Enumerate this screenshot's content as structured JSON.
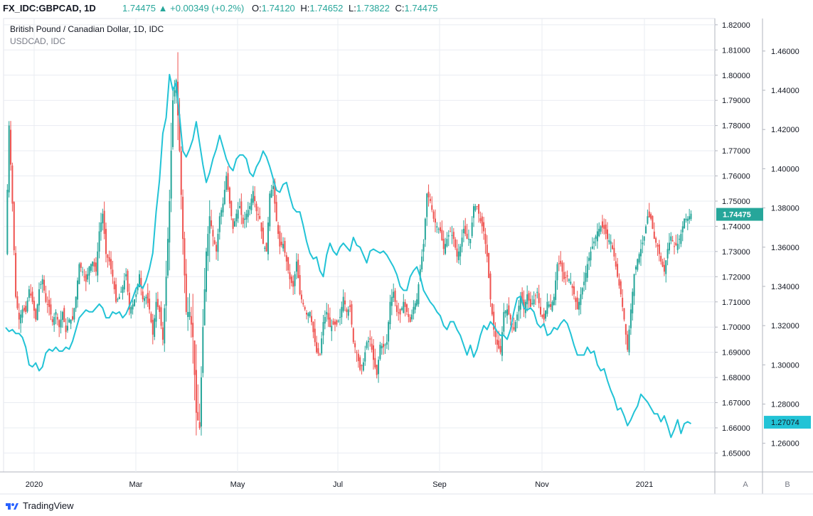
{
  "header": {
    "symbol": "FX_IDC:GBPCAD, 1D",
    "last": "1.74475",
    "change": "+0.00349 (+0.2%)",
    "open_label": "O:",
    "open": "1.74120",
    "high_label": "H:",
    "high": "1.74652",
    "low_label": "L:",
    "low": "1.73822",
    "close_label": "C:",
    "close": "1.74475"
  },
  "legend": {
    "main": "British Pound / Canadian Dollar, 1D, IDC",
    "compare": "USDCAD, IDC"
  },
  "scale_buttons": {
    "auto": "A",
    "right": "B"
  },
  "brand": "TradingView",
  "colors": {
    "up": "#26a69a",
    "down": "#ef5350",
    "compare": "#22c3d6",
    "grid": "#e9ecf2",
    "axis_text": "#131722",
    "price_badge": "#26a69a"
  },
  "chart_data": {
    "type": "candlestick+line",
    "x_ticks": [
      "2020",
      "Mar",
      "May",
      "Jul",
      "Sep",
      "Nov",
      "2021"
    ],
    "left_axis": {
      "ticks": [
        "1.82000",
        "1.81000",
        "1.80000",
        "1.79000",
        "1.78000",
        "1.77000",
        "1.76000",
        "1.75000",
        "1.74000",
        "1.73000",
        "1.72000",
        "1.71000",
        "1.70000",
        "1.69000",
        "1.68000",
        "1.67000",
        "1.66000",
        "1.65000"
      ],
      "range": [
        1.6425,
        1.8225
      ],
      "last_value": "1.74475"
    },
    "right_axis": {
      "ticks": [
        "1.46000",
        "1.44000",
        "1.42000",
        "1.40000",
        "1.38000",
        "1.36000",
        "1.34000",
        "1.32000",
        "1.30000",
        "1.28000",
        "1.26000"
      ],
      "range": [
        1.2454,
        1.4766
      ],
      "last_value": "1.27074"
    },
    "gbpcad_path": [
      [
        0,
        1.729
      ],
      [
        2,
        1.78
      ],
      [
        4,
        1.749
      ],
      [
        6,
        1.712
      ],
      [
        8,
        1.703
      ],
      [
        10,
        1.707
      ],
      [
        12,
        1.706
      ],
      [
        14,
        1.715
      ],
      [
        16,
        1.71
      ],
      [
        18,
        1.703
      ],
      [
        20,
        1.715
      ],
      [
        22,
        1.719
      ],
      [
        24,
        1.71
      ],
      [
        26,
        1.708
      ],
      [
        28,
        1.702
      ],
      [
        30,
        1.706
      ],
      [
        32,
        1.7
      ],
      [
        34,
        1.706
      ],
      [
        36,
        1.698
      ],
      [
        38,
        1.703
      ],
      [
        40,
        1.703
      ],
      [
        42,
        1.712
      ],
      [
        44,
        1.725
      ],
      [
        46,
        1.722
      ],
      [
        48,
        1.718
      ],
      [
        50,
        1.724
      ],
      [
        52,
        1.726
      ],
      [
        54,
        1.722
      ],
      [
        56,
        1.738
      ],
      [
        58,
        1.745
      ],
      [
        60,
        1.729
      ],
      [
        62,
        1.726
      ],
      [
        64,
        1.72
      ],
      [
        66,
        1.71
      ],
      [
        68,
        1.712
      ],
      [
        70,
        1.716
      ],
      [
        72,
        1.721
      ],
      [
        74,
        1.707
      ],
      [
        76,
        1.709
      ],
      [
        78,
        1.713
      ],
      [
        80,
        1.721
      ],
      [
        82,
        1.711
      ],
      [
        84,
        1.712
      ],
      [
        86,
        1.707
      ],
      [
        88,
        1.697
      ],
      [
        90,
        1.71
      ],
      [
        92,
        1.706
      ],
      [
        94,
        1.695
      ],
      [
        96,
        1.72
      ],
      [
        98,
        1.75
      ],
      [
        100,
        1.79
      ],
      [
        102,
        1.798
      ],
      [
        104,
        1.77
      ],
      [
        106,
        1.735
      ],
      [
        108,
        1.706
      ],
      [
        110,
        1.706
      ],
      [
        112,
        1.696
      ],
      [
        114,
        1.666
      ],
      [
        116,
        1.66
      ],
      [
        118,
        1.7
      ],
      [
        120,
        1.73
      ],
      [
        122,
        1.744
      ],
      [
        124,
        1.736
      ],
      [
        126,
        1.73
      ],
      [
        128,
        1.744
      ],
      [
        130,
        1.749
      ],
      [
        132,
        1.76
      ],
      [
        134,
        1.749
      ],
      [
        136,
        1.739
      ],
      [
        138,
        1.745
      ],
      [
        140,
        1.748
      ],
      [
        142,
        1.741
      ],
      [
        144,
        1.745
      ],
      [
        146,
        1.748
      ],
      [
        148,
        1.754
      ],
      [
        150,
        1.746
      ],
      [
        152,
        1.743
      ],
      [
        154,
        1.733
      ],
      [
        156,
        1.73
      ],
      [
        158,
        1.753
      ],
      [
        160,
        1.756
      ],
      [
        162,
        1.742
      ],
      [
        164,
        1.732
      ],
      [
        166,
        1.733
      ],
      [
        168,
        1.726
      ],
      [
        170,
        1.719
      ],
      [
        172,
        1.716
      ],
      [
        174,
        1.726
      ],
      [
        176,
        1.713
      ],
      [
        178,
        1.709
      ],
      [
        180,
        1.705
      ],
      [
        182,
        1.706
      ],
      [
        184,
        1.698
      ],
      [
        186,
        1.69
      ],
      [
        188,
        1.689
      ],
      [
        190,
        1.702
      ],
      [
        192,
        1.706
      ],
      [
        194,
        1.7
      ],
      [
        196,
        1.701
      ],
      [
        198,
        1.701
      ],
      [
        200,
        1.704
      ],
      [
        202,
        1.712
      ],
      [
        204,
        1.706
      ],
      [
        206,
        1.708
      ],
      [
        208,
        1.694
      ],
      [
        210,
        1.69
      ],
      [
        212,
        1.683
      ],
      [
        214,
        1.686
      ],
      [
        216,
        1.694
      ],
      [
        218,
        1.695
      ],
      [
        220,
        1.687
      ],
      [
        222,
        1.681
      ],
      [
        224,
        1.693
      ],
      [
        226,
        1.692
      ],
      [
        228,
        1.694
      ],
      [
        230,
        1.71
      ],
      [
        232,
        1.714
      ],
      [
        234,
        1.706
      ],
      [
        236,
        1.705
      ],
      [
        238,
        1.71
      ],
      [
        240,
        1.706
      ],
      [
        242,
        1.702
      ],
      [
        244,
        1.708
      ],
      [
        246,
        1.711
      ],
      [
        248,
        1.723
      ],
      [
        250,
        1.733
      ],
      [
        252,
        1.753
      ],
      [
        254,
        1.75
      ],
      [
        256,
        1.743
      ],
      [
        258,
        1.74
      ],
      [
        260,
        1.738
      ],
      [
        262,
        1.731
      ],
      [
        264,
        1.735
      ],
      [
        266,
        1.738
      ],
      [
        268,
        1.735
      ],
      [
        270,
        1.728
      ],
      [
        272,
        1.732
      ],
      [
        274,
        1.739
      ],
      [
        276,
        1.735
      ],
      [
        278,
        1.735
      ],
      [
        280,
        1.748
      ],
      [
        282,
        1.748
      ],
      [
        284,
        1.742
      ],
      [
        286,
        1.738
      ],
      [
        288,
        1.728
      ],
      [
        290,
        1.711
      ],
      [
        292,
        1.699
      ],
      [
        294,
        1.693
      ],
      [
        296,
        1.69
      ],
      [
        298,
        1.706
      ],
      [
        300,
        1.707
      ],
      [
        302,
        1.703
      ],
      [
        304,
        1.699
      ],
      [
        306,
        1.705
      ],
      [
        308,
        1.712
      ],
      [
        310,
        1.707
      ],
      [
        312,
        1.713
      ],
      [
        314,
        1.708
      ],
      [
        316,
        1.711
      ],
      [
        318,
        1.714
      ],
      [
        320,
        1.705
      ],
      [
        322,
        1.703
      ],
      [
        324,
        1.71
      ],
      [
        326,
        1.708
      ],
      [
        328,
        1.712
      ],
      [
        330,
        1.725
      ],
      [
        332,
        1.725
      ],
      [
        334,
        1.719
      ],
      [
        336,
        1.72
      ],
      [
        338,
        1.718
      ],
      [
        340,
        1.713
      ],
      [
        342,
        1.707
      ],
      [
        344,
        1.713
      ],
      [
        346,
        1.718
      ],
      [
        348,
        1.725
      ],
      [
        350,
        1.73
      ],
      [
        352,
        1.734
      ],
      [
        354,
        1.738
      ],
      [
        356,
        1.74
      ],
      [
        358,
        1.739
      ],
      [
        360,
        1.735
      ],
      [
        362,
        1.734
      ],
      [
        364,
        1.728
      ],
      [
        366,
        1.72
      ],
      [
        368,
        1.713
      ],
      [
        370,
        1.703
      ],
      [
        372,
        1.691
      ],
      [
        374,
        1.707
      ],
      [
        376,
        1.721
      ],
      [
        378,
        1.727
      ],
      [
        380,
        1.731
      ],
      [
        382,
        1.736
      ],
      [
        384,
        1.744
      ],
      [
        386,
        1.743
      ],
      [
        388,
        1.735
      ],
      [
        390,
        1.732
      ],
      [
        392,
        1.726
      ],
      [
        394,
        1.722
      ],
      [
        396,
        1.731
      ],
      [
        398,
        1.736
      ],
      [
        400,
        1.732
      ],
      [
        402,
        1.733
      ],
      [
        404,
        1.737
      ],
      [
        406,
        1.743
      ],
      [
        408,
        1.743
      ],
      [
        410,
        1.745
      ]
    ],
    "usdcad_path": [
      [
        0,
        1.319
      ],
      [
        2,
        1.317
      ],
      [
        4,
        1.318
      ],
      [
        6,
        1.316
      ],
      [
        8,
        1.316
      ],
      [
        10,
        1.314
      ],
      [
        12,
        1.309
      ],
      [
        14,
        1.3
      ],
      [
        16,
        1.299
      ],
      [
        18,
        1.301
      ],
      [
        20,
        1.297
      ],
      [
        22,
        1.299
      ],
      [
        24,
        1.306
      ],
      [
        26,
        1.308
      ],
      [
        28,
        1.307
      ],
      [
        30,
        1.309
      ],
      [
        32,
        1.307
      ],
      [
        34,
        1.307
      ],
      [
        36,
        1.309
      ],
      [
        38,
        1.308
      ],
      [
        40,
        1.312
      ],
      [
        42,
        1.318
      ],
      [
        44,
        1.324
      ],
      [
        46,
        1.326
      ],
      [
        48,
        1.328
      ],
      [
        50,
        1.327
      ],
      [
        52,
        1.327
      ],
      [
        54,
        1.329
      ],
      [
        56,
        1.331
      ],
      [
        58,
        1.329
      ],
      [
        60,
        1.324
      ],
      [
        62,
        1.324
      ],
      [
        64,
        1.327
      ],
      [
        66,
        1.326
      ],
      [
        68,
        1.327
      ],
      [
        70,
        1.324
      ],
      [
        72,
        1.326
      ],
      [
        74,
        1.33
      ],
      [
        76,
        1.334
      ],
      [
        78,
        1.339
      ],
      [
        80,
        1.341
      ],
      [
        82,
        1.339
      ],
      [
        84,
        1.343
      ],
      [
        86,
        1.349
      ],
      [
        88,
        1.357
      ],
      [
        90,
        1.378
      ],
      [
        92,
        1.394
      ],
      [
        94,
        1.418
      ],
      [
        96,
        1.426
      ],
      [
        98,
        1.448
      ],
      [
        100,
        1.44
      ],
      [
        102,
        1.444
      ],
      [
        104,
        1.427
      ],
      [
        106,
        1.409
      ],
      [
        108,
        1.406
      ],
      [
        110,
        1.41
      ],
      [
        112,
        1.415
      ],
      [
        114,
        1.424
      ],
      [
        116,
        1.413
      ],
      [
        118,
        1.402
      ],
      [
        120,
        1.393
      ],
      [
        122,
        1.398
      ],
      [
        124,
        1.405
      ],
      [
        126,
        1.41
      ],
      [
        128,
        1.417
      ],
      [
        130,
        1.411
      ],
      [
        132,
        1.405
      ],
      [
        134,
        1.401
      ],
      [
        136,
        1.399
      ],
      [
        138,
        1.405
      ],
      [
        140,
        1.407
      ],
      [
        142,
        1.407
      ],
      [
        144,
        1.405
      ],
      [
        146,
        1.398
      ],
      [
        148,
        1.396
      ],
      [
        150,
        1.401
      ],
      [
        152,
        1.404
      ],
      [
        154,
        1.409
      ],
      [
        156,
        1.406
      ],
      [
        158,
        1.401
      ],
      [
        160,
        1.395
      ],
      [
        162,
        1.389
      ],
      [
        164,
        1.388
      ],
      [
        166,
        1.392
      ],
      [
        168,
        1.393
      ],
      [
        170,
        1.386
      ],
      [
        172,
        1.38
      ],
      [
        174,
        1.378
      ],
      [
        176,
        1.378
      ],
      [
        178,
        1.371
      ],
      [
        180,
        1.363
      ],
      [
        182,
        1.357
      ],
      [
        184,
        1.354
      ],
      [
        186,
        1.355
      ],
      [
        188,
        1.348
      ],
      [
        190,
        1.345
      ],
      [
        192,
        1.356
      ],
      [
        194,
        1.362
      ],
      [
        196,
        1.358
      ],
      [
        198,
        1.356
      ],
      [
        200,
        1.36
      ],
      [
        202,
        1.362
      ],
      [
        204,
        1.36
      ],
      [
        206,
        1.358
      ],
      [
        208,
        1.365
      ],
      [
        210,
        1.361
      ],
      [
        212,
        1.36
      ],
      [
        214,
        1.356
      ],
      [
        216,
        1.352
      ],
      [
        218,
        1.358
      ],
      [
        220,
        1.359
      ],
      [
        222,
        1.358
      ],
      [
        224,
        1.357
      ],
      [
        226,
        1.358
      ],
      [
        228,
        1.356
      ],
      [
        230,
        1.353
      ],
      [
        232,
        1.35
      ],
      [
        234,
        1.346
      ],
      [
        236,
        1.34
      ],
      [
        238,
        1.338
      ],
      [
        240,
        1.338
      ],
      [
        242,
        1.345
      ],
      [
        244,
        1.348
      ],
      [
        246,
        1.35
      ],
      [
        248,
        1.345
      ],
      [
        250,
        1.338
      ],
      [
        252,
        1.335
      ],
      [
        254,
        1.332
      ],
      [
        256,
        1.33
      ],
      [
        258,
        1.327
      ],
      [
        260,
        1.325
      ],
      [
        262,
        1.32
      ],
      [
        264,
        1.318
      ],
      [
        266,
        1.322
      ],
      [
        268,
        1.322
      ],
      [
        270,
        1.318
      ],
      [
        272,
        1.315
      ],
      [
        274,
        1.31
      ],
      [
        276,
        1.305
      ],
      [
        278,
        1.31
      ],
      [
        280,
        1.304
      ],
      [
        282,
        1.308
      ],
      [
        284,
        1.315
      ],
      [
        286,
        1.32
      ],
      [
        288,
        1.318
      ],
      [
        290,
        1.322
      ],
      [
        292,
        1.32
      ],
      [
        294,
        1.317
      ],
      [
        296,
        1.315
      ],
      [
        298,
        1.315
      ],
      [
        300,
        1.313
      ],
      [
        302,
        1.318
      ],
      [
        304,
        1.327
      ],
      [
        306,
        1.334
      ],
      [
        308,
        1.335
      ],
      [
        310,
        1.329
      ],
      [
        312,
        1.328
      ],
      [
        314,
        1.329
      ],
      [
        316,
        1.327
      ],
      [
        318,
        1.321
      ],
      [
        320,
        1.319
      ],
      [
        322,
        1.321
      ],
      [
        324,
        1.315
      ],
      [
        326,
        1.316
      ],
      [
        328,
        1.319
      ],
      [
        330,
        1.318
      ],
      [
        332,
        1.321
      ],
      [
        334,
        1.323
      ],
      [
        336,
        1.321
      ],
      [
        338,
        1.316
      ],
      [
        340,
        1.31
      ],
      [
        342,
        1.305
      ],
      [
        344,
        1.305
      ],
      [
        346,
        1.305
      ],
      [
        348,
        1.309
      ],
      [
        350,
        1.306
      ],
      [
        352,
        1.307
      ],
      [
        354,
        1.3
      ],
      [
        356,
        1.297
      ],
      [
        358,
        1.298
      ],
      [
        360,
        1.292
      ],
      [
        362,
        1.287
      ],
      [
        364,
        1.283
      ],
      [
        366,
        1.277
      ],
      [
        368,
        1.278
      ],
      [
        370,
        1.274
      ],
      [
        372,
        1.269
      ],
      [
        374,
        1.272
      ],
      [
        376,
        1.276
      ],
      [
        378,
        1.279
      ],
      [
        380,
        1.285
      ],
      [
        382,
        1.283
      ],
      [
        384,
        1.281
      ],
      [
        386,
        1.278
      ],
      [
        388,
        1.275
      ],
      [
        390,
        1.275
      ],
      [
        392,
        1.271
      ],
      [
        394,
        1.274
      ],
      [
        396,
        1.269
      ],
      [
        398,
        1.263
      ],
      [
        400,
        1.267
      ],
      [
        402,
        1.272
      ],
      [
        404,
        1.265
      ],
      [
        406,
        1.27
      ],
      [
        408,
        1.271
      ],
      [
        410,
        1.27
      ]
    ]
  }
}
